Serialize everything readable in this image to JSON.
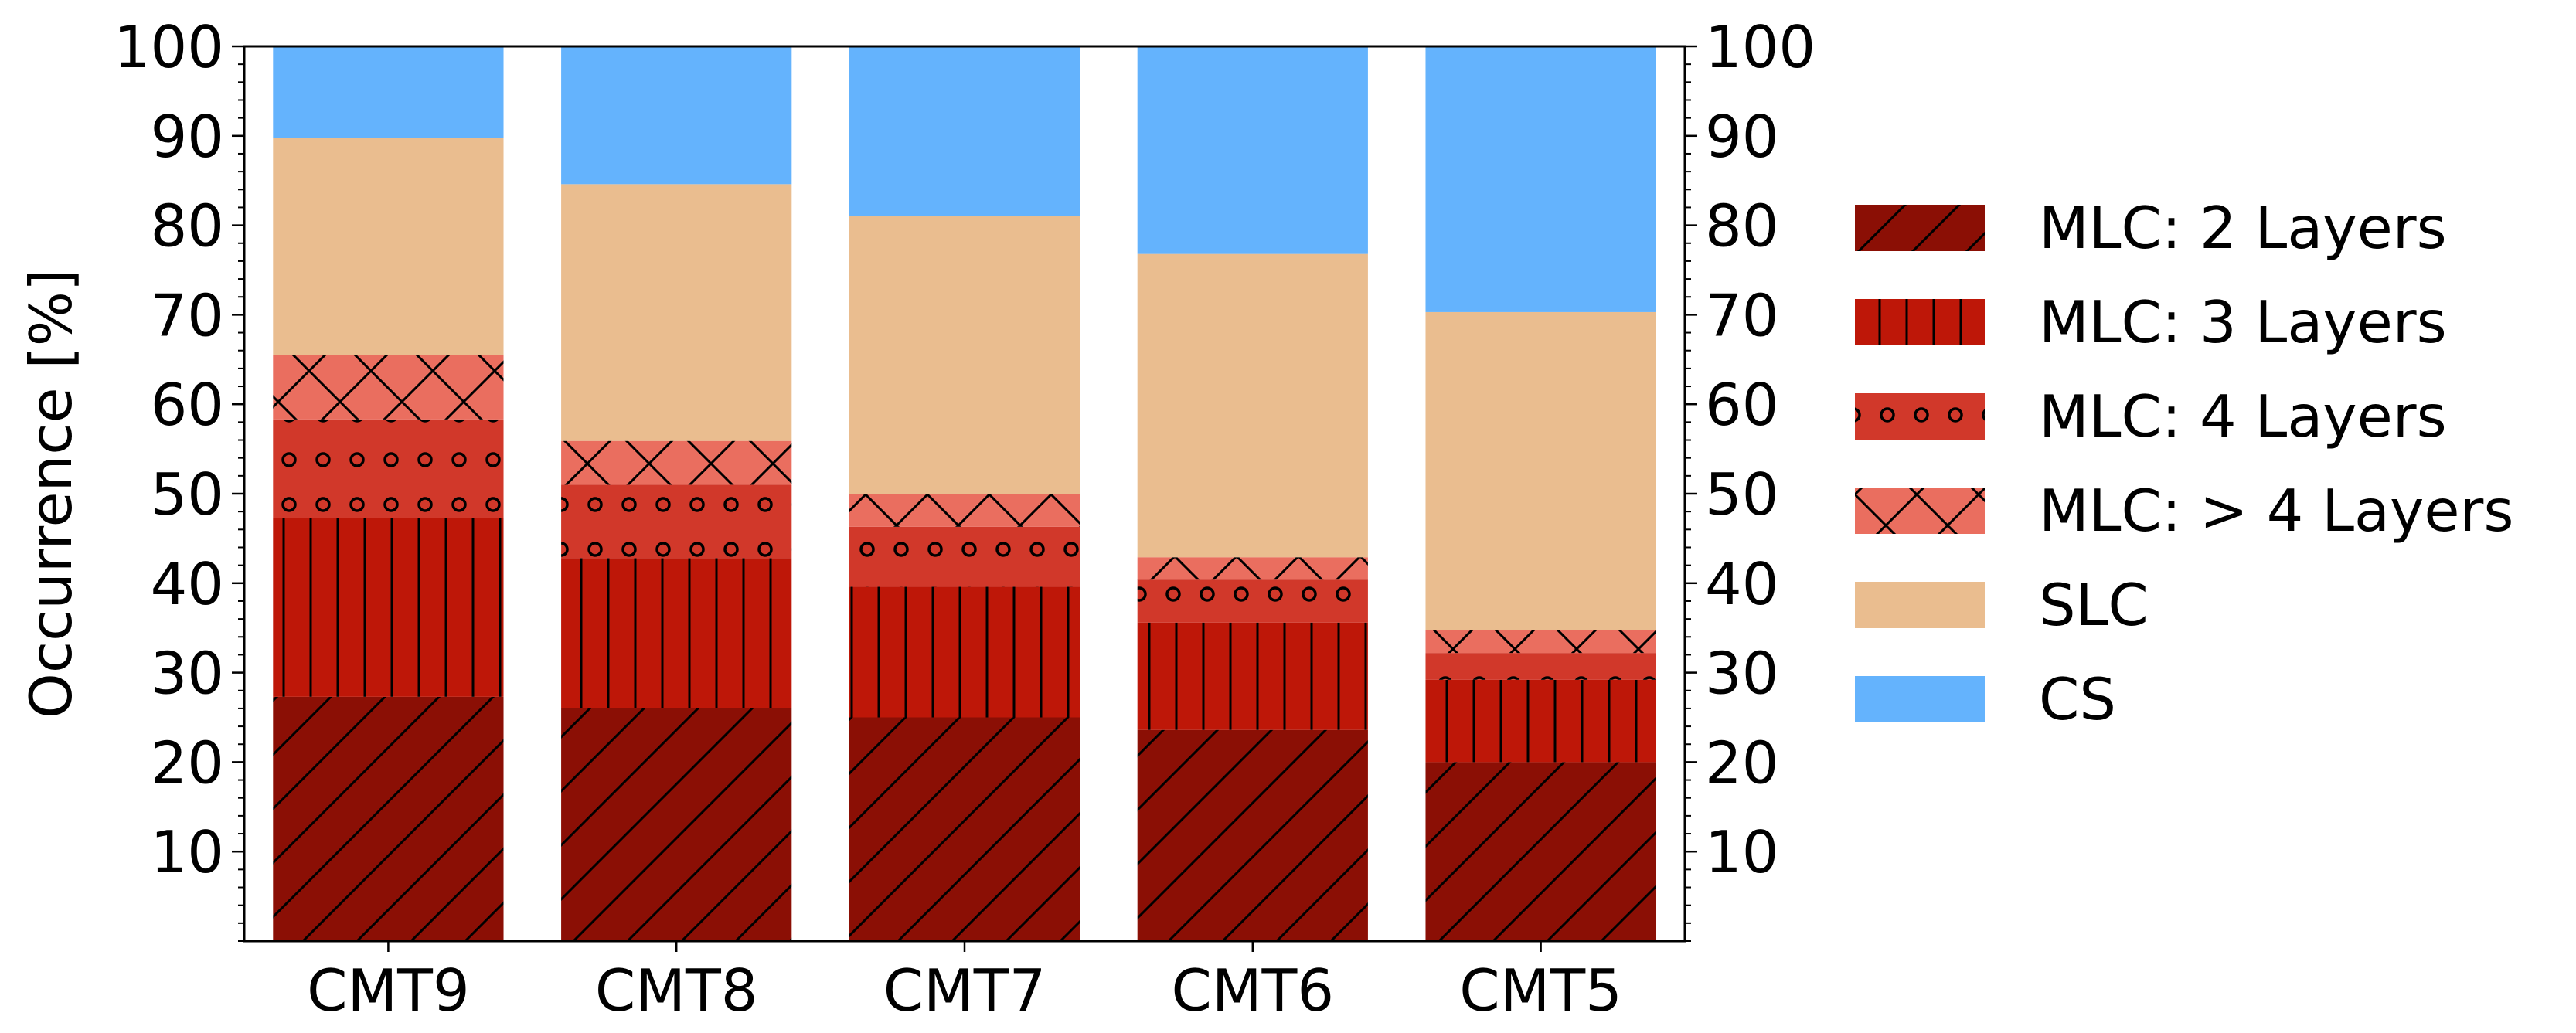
{
  "chart_data": {
    "type": "bar",
    "stacked": true,
    "categories": [
      "CMT9",
      "CMT8",
      "CMT7",
      "CMT6",
      "CMT5"
    ],
    "series": [
      {
        "name": "MLC: 2 Layers",
        "values": [
          27.3,
          26.0,
          25.0,
          23.6,
          20.0
        ],
        "color": "#8b0f05",
        "pattern": "diagonal"
      },
      {
        "name": "MLC: 3 Layers",
        "values": [
          20.0,
          16.8,
          14.6,
          12.0,
          9.2
        ],
        "color": "#be1708",
        "pattern": "vertical"
      },
      {
        "name": "MLC: 4 Layers",
        "values": [
          11.0,
          8.2,
          6.7,
          4.8,
          3.0
        ],
        "color": "#d1382a",
        "pattern": "circles"
      },
      {
        "name": "MLC: > 4 Layers",
        "values": [
          7.2,
          4.9,
          3.7,
          2.5,
          2.6
        ],
        "color": "#ea6e5f",
        "pattern": "cross"
      },
      {
        "name": "SLC",
        "values": [
          24.3,
          28.7,
          31.0,
          33.9,
          35.5
        ],
        "color": "#eabd8f",
        "pattern": "none"
      },
      {
        "name": "CS",
        "values": [
          10.2,
          15.4,
          19.0,
          23.2,
          29.7
        ],
        "color": "#64b3fd",
        "pattern": "none"
      }
    ],
    "ylabel": "Occurrence [%]",
    "xlabel": "",
    "ylim": [
      0,
      100
    ],
    "yticks": [
      10,
      20,
      30,
      40,
      50,
      60,
      70,
      80,
      90,
      100
    ],
    "right_axis_ticks": true,
    "grid": false,
    "legend_position": "right"
  }
}
